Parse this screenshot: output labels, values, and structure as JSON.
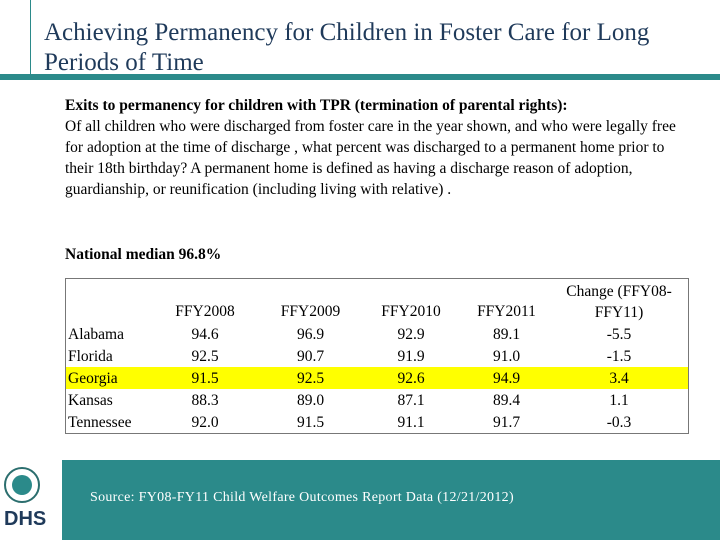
{
  "header": {
    "title": "Achieving Permanency for Children in Foster Care for Long Periods of Time"
  },
  "intro": {
    "lead": "Exits to permanency for children with TPR (termination of parental rights):",
    "body": "Of all children who were discharged from foster care in the year shown, and who were legally free for adoption at the time of discharge , what percent was discharged to a permanent home prior to their 18th birthday? A permanent home is defined as having a discharge reason of adoption, guardianship, or reunification (including living with relative) ."
  },
  "median": "National median 96.8%",
  "table": {
    "columns": [
      "",
      "FFY2008",
      "FFY2009",
      "FFY2010",
      "FFY2011",
      "Change (FFY08-FFY11)"
    ],
    "rows": [
      [
        "Alabama",
        "94.6",
        "96.9",
        "92.9",
        "89.1",
        "-5.5"
      ],
      [
        "Florida",
        "92.5",
        "90.7",
        "91.9",
        "91.0",
        "-1.5"
      ],
      [
        "Georgia",
        "91.5",
        "92.5",
        "92.6",
        "94.9",
        "3.4"
      ],
      [
        "Kansas",
        "88.3",
        "89.0",
        "87.1",
        "89.4",
        "1.1"
      ],
      [
        "Tennessee",
        "92.0",
        "91.5",
        "91.1",
        "91.7",
        "-0.3"
      ]
    ],
    "highlight_row": 2
  },
  "footer": {
    "source": "Source:  FY08-FY11 Child Welfare Outcomes Report Data (12/21/2012)",
    "logo": "DHS"
  }
}
